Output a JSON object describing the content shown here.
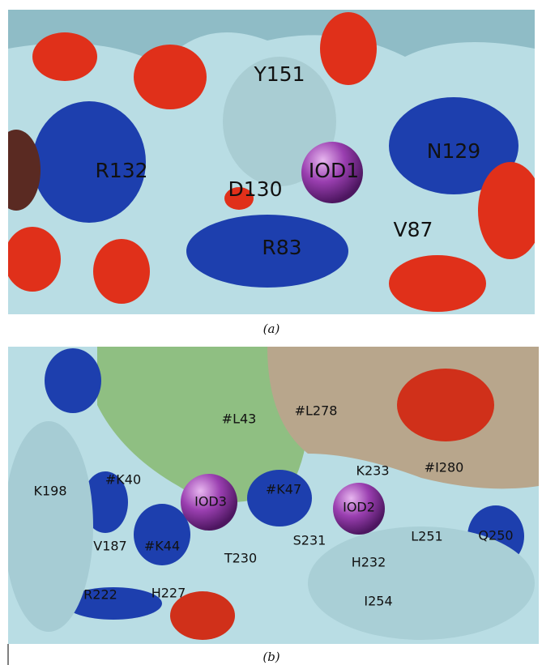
{
  "panels": [
    {
      "caption": "(a)",
      "labels": [
        "Y151",
        "R132",
        "D130",
        "IOD1",
        "N129",
        "V87",
        "R83"
      ]
    },
    {
      "caption": "(b)",
      "labels": [
        "#L43",
        "#L278",
        "K233",
        "#I280",
        "K198",
        "#K40",
        "IOD3",
        "#K47",
        "IOD2",
        "V187",
        "#K44",
        "T230",
        "S231",
        "H232",
        "L251",
        "Q250",
        "R222",
        "H227",
        "I254"
      ]
    }
  ]
}
